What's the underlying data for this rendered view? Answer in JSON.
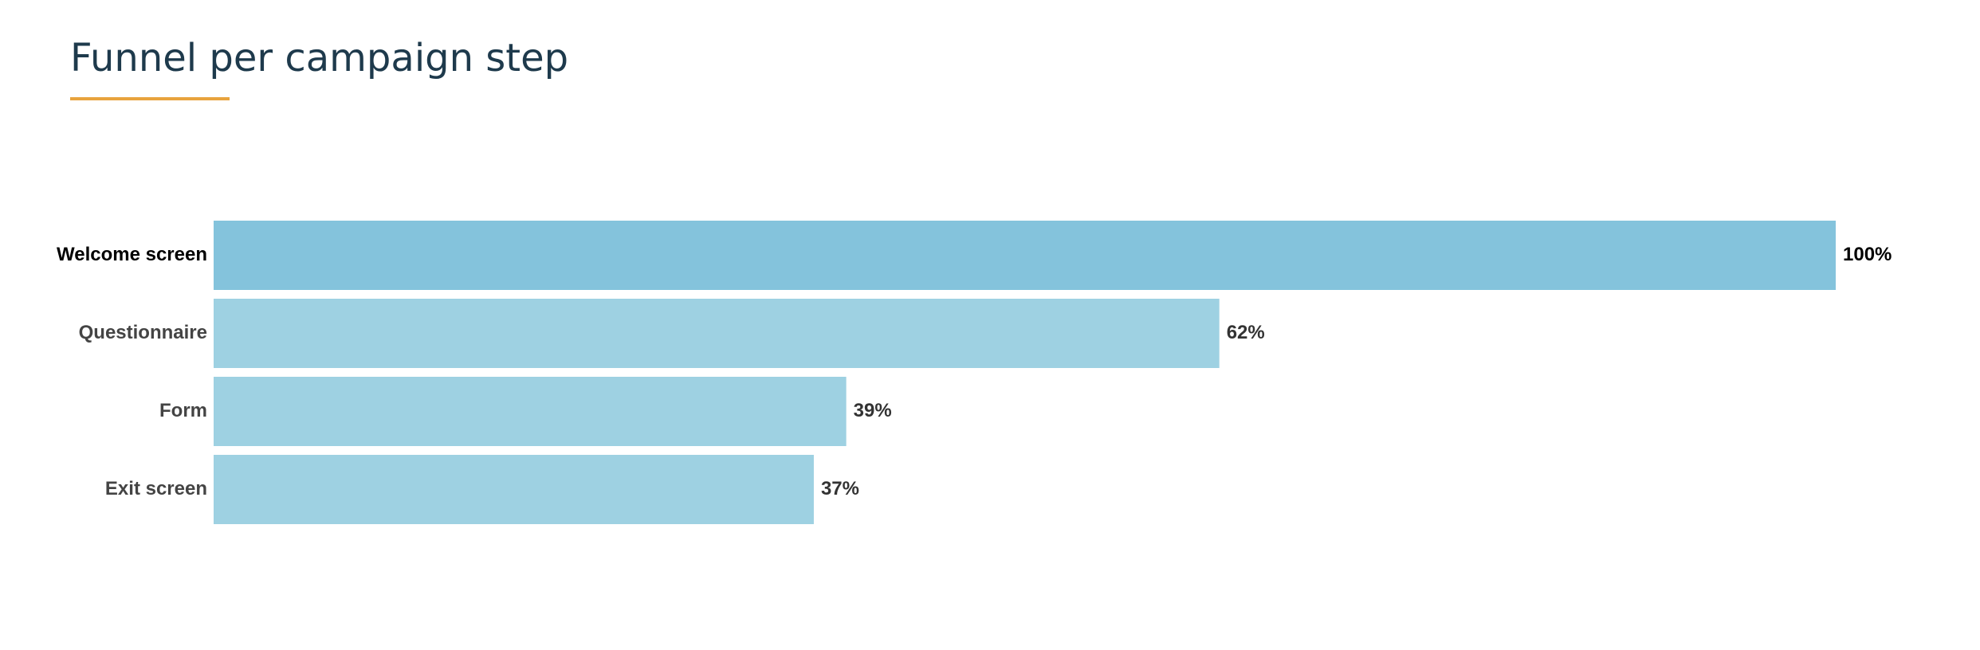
{
  "chart_data": {
    "type": "bar",
    "orientation": "horizontal",
    "title": "Funnel per campaign step",
    "categories": [
      "Welcome screen",
      "Questionnaire",
      "Form",
      "Exit screen"
    ],
    "values": [
      100,
      62,
      39,
      37
    ],
    "value_labels": [
      "100%",
      "62%",
      "39%",
      "37%"
    ],
    "colors": [
      "#84c3dc",
      "#9ed1e2",
      "#9ed1e2",
      "#9ed1e2"
    ]
  }
}
